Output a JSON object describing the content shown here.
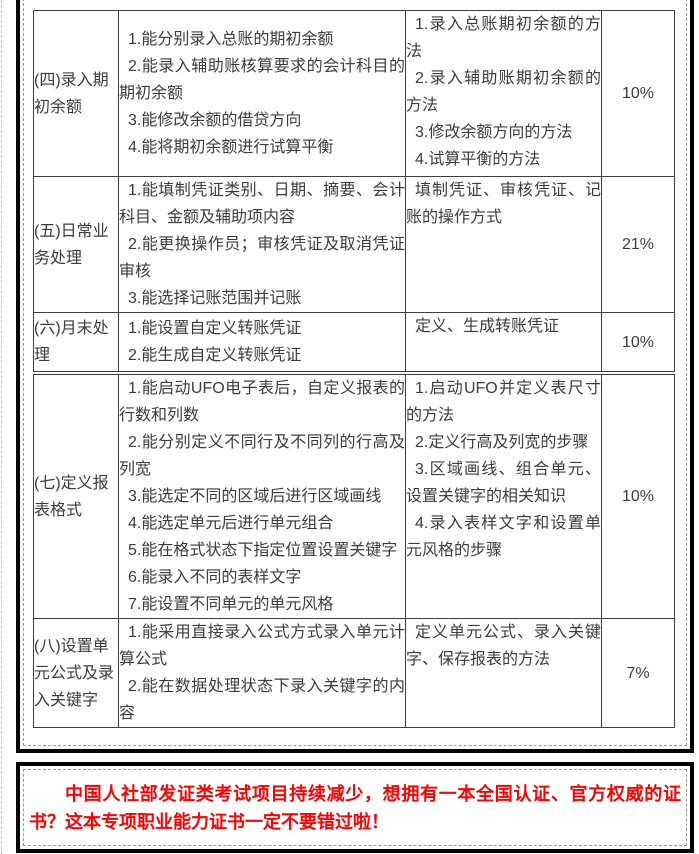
{
  "colors": {
    "promo_text": "#fe0000",
    "table_border": "#3f3f3f",
    "frame_border": "#000000"
  },
  "tables": [
    {
      "name": "syllabus-part-1",
      "rows": [
        {
          "category": "(四)录入期初余额",
          "skills": [
            "1.能分别录入总账的期初余额",
            "2.能录入辅助账核算要求的会计科目的期初余额",
            "3.能修改余额的借贷方向",
            "4.能将期初余额进行试算平衡"
          ],
          "knowledge": [
            "1.录入总账期初余额的方法",
            "2.录入辅助账期初余额的方法",
            "3.修改余额方向的方法",
            "4.试算平衡的方法"
          ],
          "weight": "10%"
        },
        {
          "category": "(五)日常业务处理",
          "skills": [
            "1.能填制凭证类别、日期、摘要、会计科目、金额及辅助项内容",
            "2.能更换操作员；审核凭证及取消凭证审核",
            "3.能选择记账范围并记账"
          ],
          "knowledge": [
            "填制凭证、审核凭证、记账的操作方式"
          ],
          "weight": "21%"
        },
        {
          "category": "(六)月末处理",
          "skills": [
            "1.能设置自定义转账凭证",
            "2.能生成自定义转账凭证"
          ],
          "knowledge": [
            "定义、生成转账凭证"
          ],
          "weight": "10%"
        }
      ]
    },
    {
      "name": "syllabus-part-2",
      "rows": [
        {
          "category": "(七)定义报表格式",
          "skills": [
            "1.能启动UFO电子表后，自定义报表的行数和列数",
            "2.能分别定义不同行及不同列的行高及列宽",
            "3.能选定不同的区域后进行区域画线",
            "4.能选定单元后进行单元组合",
            "5.能在格式状态下指定位置设置关键字",
            "6.能录入不同的表样文字",
            "7.能设置不同单元的单元风格"
          ],
          "knowledge": [
            "1.启动UFO并定义表尺寸的方法",
            "2.定义行高及列宽的步骤",
            "3.区域画线、组合单元、设置关键字的相关知识",
            "4.录入表样文字和设置单元风格的步骤"
          ],
          "weight": "10%"
        },
        {
          "category": "(八)设置单元公式及录入关键字",
          "skills": [
            "1.能采用直接录入公式方式录入单元计算公式",
            "2.能在数据处理状态下录入关键字的内容"
          ],
          "knowledge": [
            "定义单元公式、录入关键字、保存报表的方法"
          ],
          "weight": "7%"
        }
      ]
    }
  ],
  "promo": {
    "text": "中国人社部发证类考试项目持续减少，想拥有一本全国认证、官方权威的证书？这本专项职业能力证书一定不要错过啦！"
  }
}
